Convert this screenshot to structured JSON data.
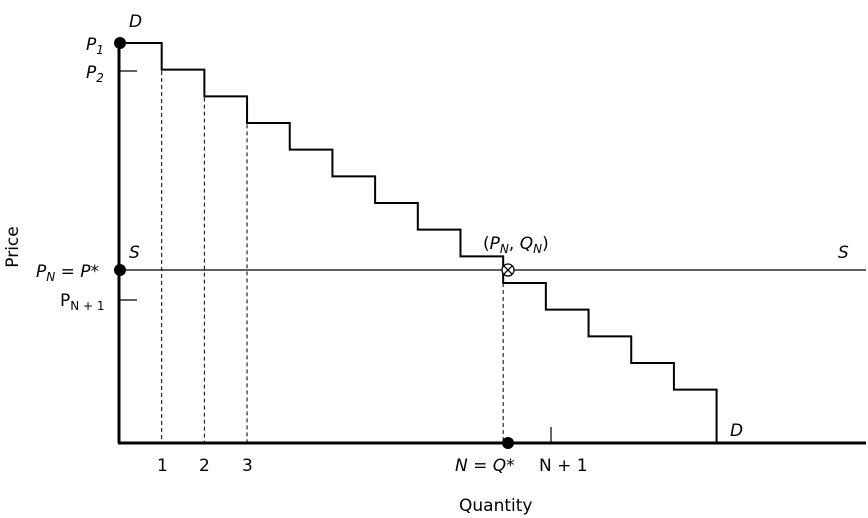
{
  "chart_data": {
    "type": "step-diagram",
    "xlabel": "Quantity",
    "ylabel": "Price",
    "demand_label": "D",
    "supply_label": "S",
    "price_labels": {
      "p1": {
        "main": "P",
        "sub": "1"
      },
      "p2": {
        "main": "P",
        "sub": "2"
      },
      "pn": {
        "main": "P",
        "sub": "N",
        "tail": " = P*"
      },
      "pn1": {
        "main": "P",
        "sub": "N + 1"
      }
    },
    "quantity_labels": [
      "1",
      "2",
      "3"
    ],
    "equilibrium_quantity_label": "N = Q*",
    "next_quantity_label": "N + 1",
    "equilibrium_point_label": {
      "open": "(",
      "p": "P",
      "p_sub": "N",
      "sep": ", ",
      "q": "Q",
      "q_sub": "N",
      "close": ")"
    },
    "demand_steps": [
      [
        0,
        15
      ],
      [
        1,
        14
      ],
      [
        2,
        13
      ],
      [
        3,
        12
      ],
      [
        4,
        11
      ],
      [
        5,
        10
      ],
      [
        6,
        9
      ],
      [
        7,
        8
      ],
      [
        8,
        7
      ],
      [
        9,
        6
      ],
      [
        10,
        5
      ],
      [
        11,
        4
      ],
      [
        12,
        3
      ],
      [
        13,
        2
      ],
      [
        14,
        1
      ]
    ],
    "equilibrium": {
      "step": 9,
      "price": 6
    },
    "step_count": 14,
    "x_min": 0,
    "x_max": 17.5,
    "y_min": 0,
    "y_max": 15
  }
}
